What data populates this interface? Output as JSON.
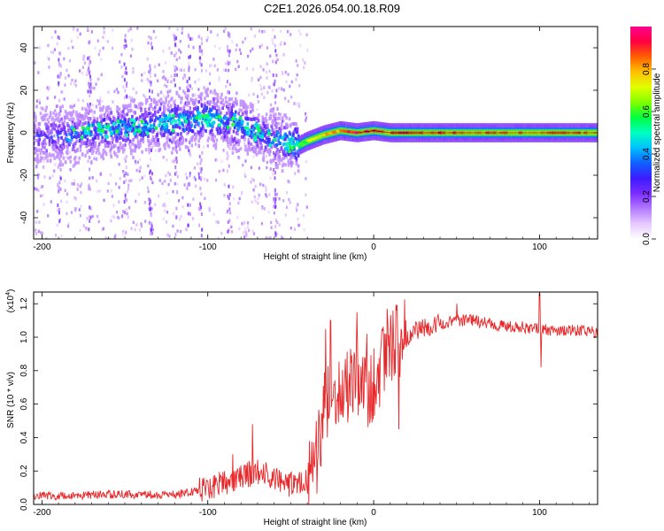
{
  "title": "C2E1.2026.054.00.18.R09",
  "chart_data": [
    {
      "type": "heatmap",
      "name": "spectrogram",
      "xlabel": "Height of straight line (km)",
      "ylabel": "Frequency (Hz)",
      "xlim": [
        -205,
        135
      ],
      "ylim": [
        -50,
        50
      ],
      "xticks": [
        -200,
        -100,
        0,
        100
      ],
      "yticks": [
        -40,
        -20,
        0,
        20,
        40
      ],
      "xtick_labels": [
        "-200",
        "-100",
        "0",
        "100"
      ],
      "ytick_labels": [
        "-40",
        "-20",
        "0",
        "20",
        "40"
      ],
      "ridge": {
        "x": [
          -205,
          -180,
          -160,
          -140,
          -120,
          -100,
          -90,
          -80,
          -70,
          -60,
          -50,
          -45,
          -40,
          -30,
          -20,
          -10,
          0,
          10,
          30,
          60,
          100,
          135
        ],
        "center_hz": [
          -2,
          -1,
          1,
          3,
          5,
          7,
          6,
          4,
          0,
          -3,
          -5,
          -6,
          -4,
          -1,
          1,
          0,
          1,
          0,
          0,
          0,
          0,
          0
        ],
        "amplitude": [
          0.25,
          0.3,
          0.35,
          0.35,
          0.4,
          0.45,
          0.4,
          0.4,
          0.35,
          0.3,
          0.45,
          0.55,
          0.7,
          0.8,
          0.9,
          0.95,
          0.95,
          0.9,
          0.9,
          0.85,
          0.85,
          0.85
        ]
      },
      "colorbar": {
        "label": "Normalized spectral amplitude",
        "range": [
          0.0,
          1.0
        ],
        "ticks": [
          0.0,
          0.2,
          0.4,
          0.6,
          0.8
        ],
        "tick_labels": [
          "0.0",
          "0.2",
          "0.4",
          "0.6",
          "0.8"
        ],
        "colors": [
          "#ffffff",
          "#e6c8ff",
          "#b47aff",
          "#7a2dff",
          "#3c1cff",
          "#1060ff",
          "#00c0ff",
          "#00ffc0",
          "#00ff40",
          "#80ff00",
          "#e0ff00",
          "#ffc000",
          "#ff6000",
          "#ff0040",
          "#ff0090"
        ]
      }
    },
    {
      "type": "line",
      "name": "snr",
      "xlabel": "Height of straight line (km)",
      "ylabel": "SNR (10 * v/v)",
      "scale_label": "(x10",
      "scale_exp": "4",
      "scale_suffix": ")",
      "xlim": [
        -205,
        135
      ],
      "ylim": [
        0,
        1.27
      ],
      "xticks": [
        -200,
        -100,
        0,
        100
      ],
      "yticks": [
        0.0,
        0.2,
        0.4,
        0.6,
        0.8,
        1.0,
        1.2
      ],
      "xtick_labels": [
        "-200",
        "-100",
        "0",
        "100"
      ],
      "ytick_labels": [
        "0.0",
        "0.2",
        "0.4",
        "0.6",
        "0.8",
        "1.0",
        "1.2"
      ],
      "color": "#e8282a",
      "envelope": {
        "x": [
          -205,
          -150,
          -120,
          -100,
          -90,
          -80,
          -70,
          -60,
          -50,
          -40,
          -35,
          -30,
          -25,
          -20,
          -15,
          -10,
          -5,
          0,
          5,
          10,
          20,
          30,
          40,
          50,
          60,
          70,
          80,
          90,
          100,
          110,
          120,
          135
        ],
        "y": [
          0.04,
          0.05,
          0.05,
          0.08,
          0.12,
          0.15,
          0.18,
          0.15,
          0.1,
          0.12,
          0.25,
          0.55,
          0.7,
          0.68,
          0.72,
          0.75,
          0.65,
          0.72,
          0.82,
          0.92,
          1.0,
          1.06,
          1.08,
          1.1,
          1.1,
          1.08,
          1.07,
          1.06,
          1.05,
          1.04,
          1.04,
          1.03
        ]
      },
      "spikes": [
        {
          "x": -85,
          "y": 0.3
        },
        {
          "x": -73,
          "y": 0.48
        },
        {
          "x": -29,
          "y": 1.05
        },
        {
          "x": -26,
          "y": 1.1
        },
        {
          "x": -10,
          "y": 1.15
        },
        {
          "x": -4,
          "y": 1.02
        },
        {
          "x": 5,
          "y": 1.05
        },
        {
          "x": 8,
          "y": 1.17
        },
        {
          "x": 15,
          "y": 0.45
        },
        {
          "x": 50,
          "y": 1.2
        },
        {
          "x": 100,
          "y": 1.26
        },
        {
          "x": 101,
          "y": 0.82
        }
      ]
    }
  ]
}
